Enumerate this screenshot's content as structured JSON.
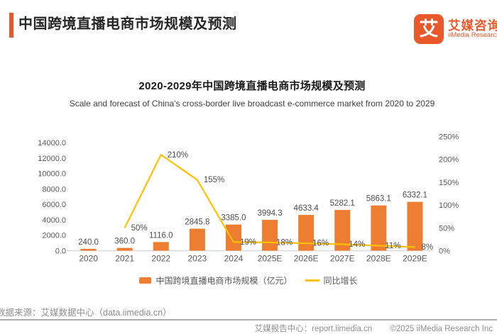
{
  "header": {
    "title": "中国跨境直播电商市场规模及预测",
    "logo": {
      "glyph": "艾",
      "brand_cn": "艾媒咨询",
      "brand_en": "iiMedia Research"
    }
  },
  "chart": {
    "title": "2020-2029年中国跨境直播电商市场规模及预测",
    "subtitle": "Scale and forecast of China's cross-border live broadcast e-commerce market from 2020 to 2029"
  },
  "chart_data": {
    "type": "bar",
    "title": "2020-2029年中国跨境直播电商市场规模及预测",
    "categories": [
      "2020",
      "2021",
      "2022",
      "2023",
      "2024",
      "2025E",
      "2026E",
      "2027E",
      "2028E",
      "2029E"
    ],
    "series": [
      {
        "name": "中国跨境直播电商市场规模（亿元）",
        "type": "bar",
        "axis": "left",
        "color": "#ED7D31",
        "values": [
          240.0,
          360.0,
          1116.0,
          2845.8,
          3385.0,
          3994.3,
          4633.4,
          5282.1,
          5863.1,
          6332.1
        ],
        "labels": [
          "240.0",
          "360.0",
          "1116.0",
          "2845.8",
          "3385.0",
          "3994.3",
          "4633.4",
          "5282.1",
          "5863.1",
          "6332.1"
        ]
      },
      {
        "name": "同比增长",
        "type": "line",
        "axis": "right",
        "color": "#FFC000",
        "values": [
          null,
          50,
          210,
          155,
          19,
          18,
          16,
          14,
          11,
          8
        ],
        "labels": [
          null,
          "50%",
          "210%",
          "155%",
          "19%",
          "18%",
          "16%",
          "14%",
          "11%",
          "8%"
        ]
      }
    ],
    "left_axis": {
      "ticks": [
        "0.0",
        "2000.0",
        "4000.0",
        "6000.0",
        "8000.0",
        "10000.0",
        "12000.0",
        "14000.0"
      ],
      "min": 0,
      "max": 14000
    },
    "right_axis": {
      "ticks": [
        "0%",
        "50%",
        "100%",
        "150%",
        "200%",
        "250%"
      ],
      "min": 0,
      "max": 250
    },
    "grid": false,
    "legend_position": "bottom"
  },
  "footer": {
    "source": "数据来源：艾媒数据中心（data.iimedia.cn）",
    "report_center": "艾媒报告中心：report.iimedia.cn",
    "copyright": "©2025 iiMedia Research Inc"
  },
  "colors": {
    "accent": "#E8582A",
    "bar": "#ED7D31",
    "line": "#FFC000"
  }
}
